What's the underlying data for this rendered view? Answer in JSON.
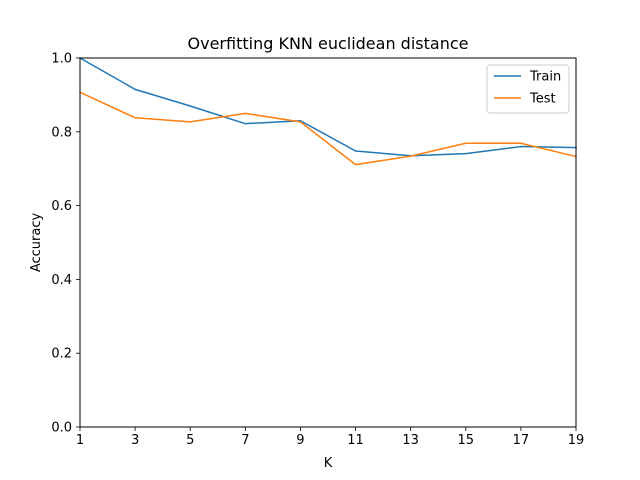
{
  "chart_data": {
    "type": "line",
    "title": "Overfitting KNN euclidean distance",
    "xlabel": "K",
    "ylabel": "Accuracy",
    "x": [
      1,
      3,
      5,
      7,
      9,
      11,
      13,
      15,
      17,
      19
    ],
    "xlim": [
      1,
      19
    ],
    "ylim": [
      0.0,
      1.0
    ],
    "xticks": [
      "1",
      "3",
      "5",
      "7",
      "9",
      "11",
      "13",
      "15",
      "17",
      "19"
    ],
    "yticks": [
      "0.0",
      "0.2",
      "0.4",
      "0.6",
      "0.8",
      "1.0"
    ],
    "grid": false,
    "legend_position": "top-right",
    "series": [
      {
        "name": "Train",
        "color": "#1f77b4",
        "values": [
          1.0,
          0.915,
          0.87,
          0.822,
          0.83,
          0.748,
          0.735,
          0.741,
          0.76,
          0.757
        ]
      },
      {
        "name": "Test",
        "color": "#ff7f0e",
        "values": [
          0.907,
          0.838,
          0.827,
          0.85,
          0.827,
          0.711,
          0.734,
          0.769,
          0.769,
          0.733
        ]
      }
    ]
  }
}
